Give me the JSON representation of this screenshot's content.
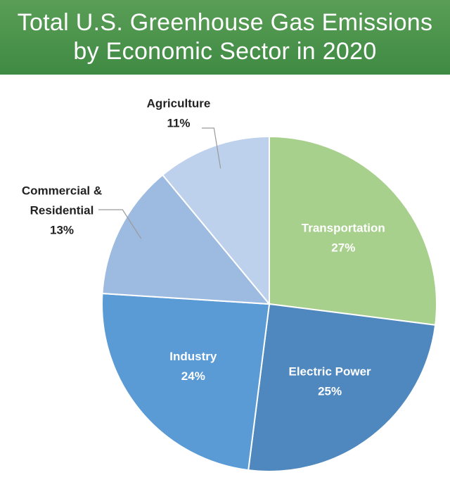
{
  "header": {
    "title_line1": "Total U.S. Greenhouse Gas Emissions",
    "title_line2": "by Economic Sector in 2020",
    "background": "#4a9450"
  },
  "chart_data": {
    "type": "pie",
    "title": "Total U.S. Greenhouse Gas Emissions by Economic Sector in 2020",
    "start": "12 o'clock",
    "direction": "clockwise",
    "slices": [
      {
        "label": "Transportation",
        "lines": [
          "Transportation"
        ],
        "value": 27,
        "display": "27%",
        "color": "#a8d08d",
        "label_color": "#ffffff",
        "label_position": "inside"
      },
      {
        "label": "Electric Power",
        "lines": [
          "Electric Power"
        ],
        "value": 25,
        "display": "25%",
        "color": "#4f88bf",
        "label_color": "#ffffff",
        "label_position": "inside"
      },
      {
        "label": "Industry",
        "lines": [
          "Industry"
        ],
        "value": 24,
        "display": "24%",
        "color": "#5b9bd5",
        "label_color": "#ffffff",
        "label_position": "inside"
      },
      {
        "label": "Commercial & Residential",
        "lines": [
          "Commercial &",
          "Residential"
        ],
        "value": 13,
        "display": "13%",
        "color": "#9dbbe0",
        "label_color": "#222222",
        "label_position": "outside"
      },
      {
        "label": "Agriculture",
        "lines": [
          "Agriculture"
        ],
        "value": 11,
        "display": "11%",
        "color": "#bdd1ec",
        "label_color": "#222222",
        "label_position": "outside"
      }
    ]
  }
}
